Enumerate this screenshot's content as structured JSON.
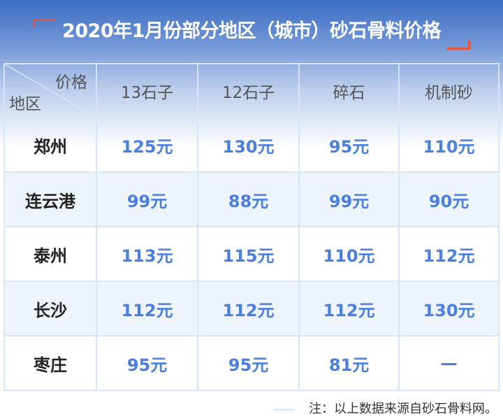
{
  "title": "2020年1月份部分地区（城市）砂石骨料价格",
  "corner": {
    "top": "价格",
    "bottom": "地区"
  },
  "columns": [
    "13石子",
    "12石子",
    "碎石",
    "机制砂"
  ],
  "rows": [
    {
      "city": "郑州",
      "values": [
        "125元",
        "130元",
        "95元",
        "110元"
      ]
    },
    {
      "city": "连云港",
      "values": [
        "99元",
        "88元",
        "99元",
        "90元"
      ]
    },
    {
      "city": "泰州",
      "values": [
        "113元",
        "115元",
        "110元",
        "112元"
      ]
    },
    {
      "city": "长沙",
      "values": [
        "112元",
        "112元",
        "112元",
        "130元"
      ]
    },
    {
      "city": "枣庄",
      "values": [
        "95元",
        "95元",
        "81元",
        "—"
      ]
    }
  ],
  "note": "注：以上数据来源自砂石骨料网。",
  "colors": {
    "value": "#4a7fe0",
    "accent": "#e8553a"
  }
}
